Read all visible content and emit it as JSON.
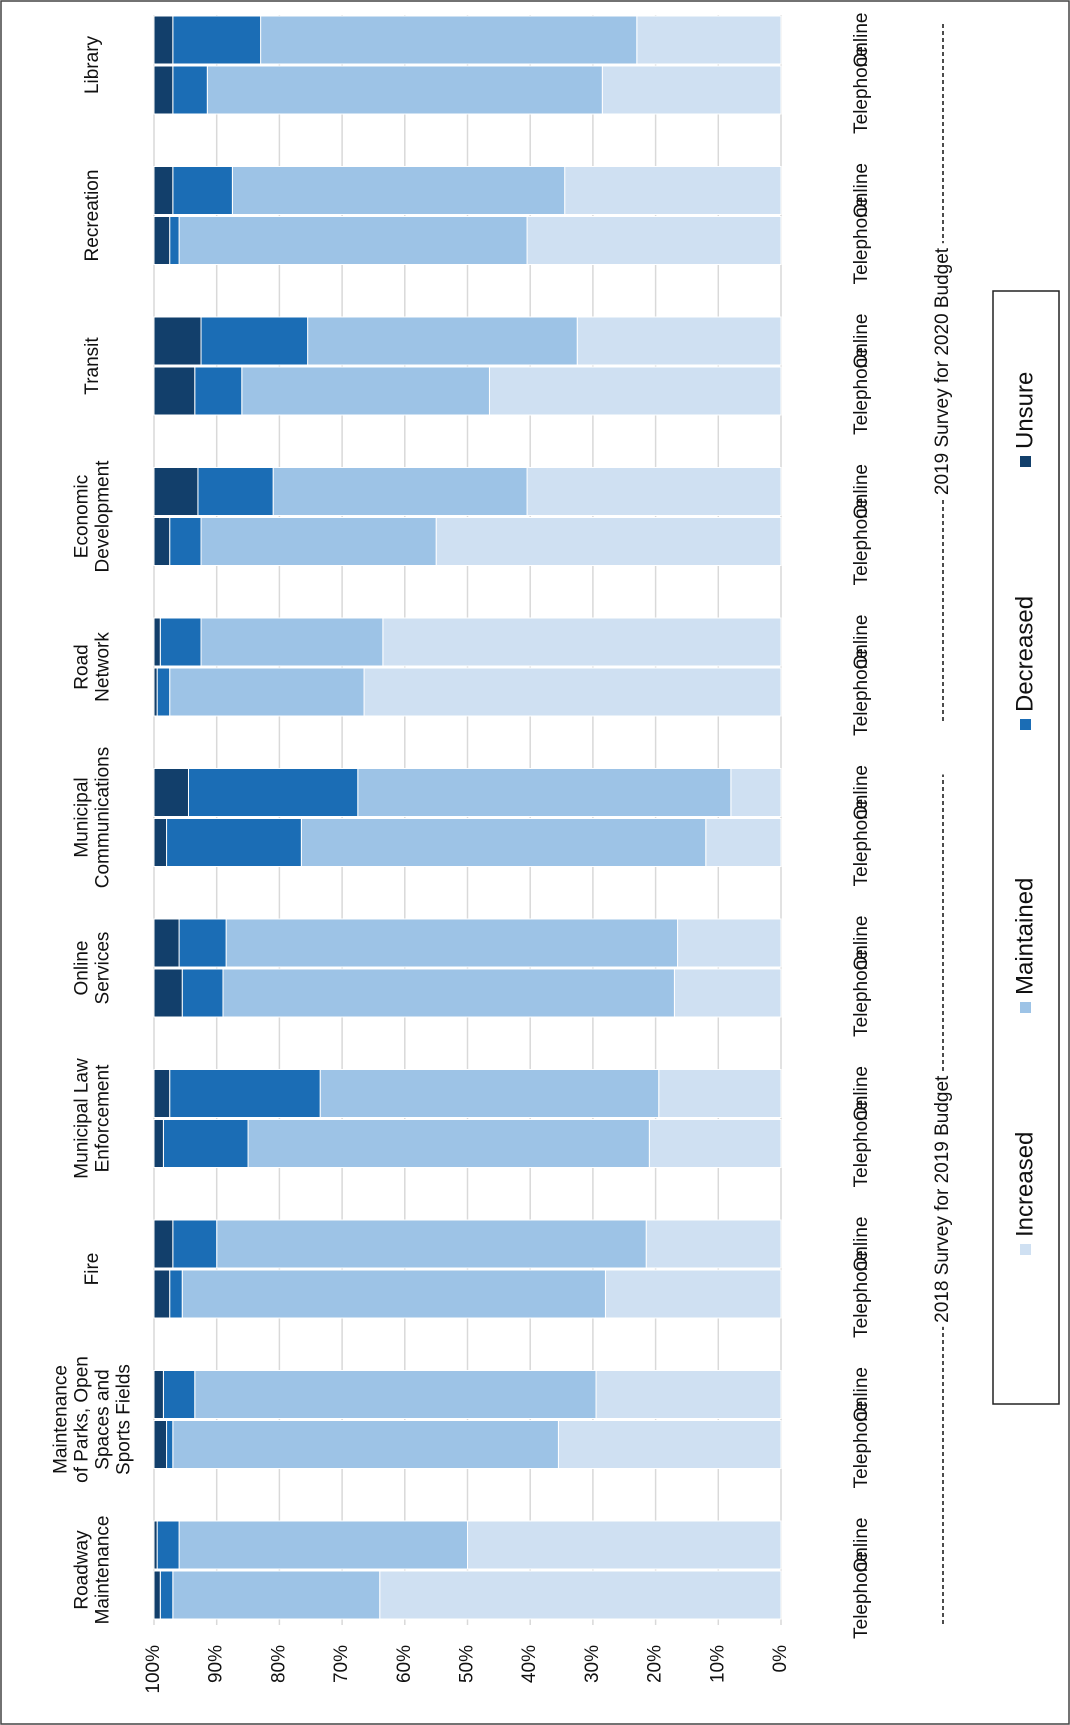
{
  "chart_data": {
    "type": "stacked-bar",
    "groups": [
      {
        "label": "2018 Survey for 2019 Budget",
        "categories": [
          [
            "Roadway",
            "Maintenance"
          ],
          [
            "Maintenance",
            "of Parks, Open",
            "Spaces and",
            "Sports Fields"
          ],
          [
            "Fire"
          ],
          [
            "Municipal Law",
            "Enforcement"
          ],
          [
            "Online",
            "Services"
          ],
          [
            "Municipal",
            "Communications"
          ]
        ]
      },
      {
        "label": "2019 Survey for 2020 Budget",
        "categories": [
          [
            "Road",
            "Network"
          ],
          [
            "Economic",
            "Development"
          ],
          [
            "Transit"
          ],
          [
            "Recreation"
          ],
          [
            "Library"
          ]
        ]
      }
    ],
    "bar_labels": [
      "Telephone",
      "Online"
    ],
    "series": [
      {
        "name": "Increased",
        "color": "#cfe0f2",
        "values": [
          [
            64,
            50
          ],
          [
            35.5,
            29.5
          ],
          [
            28,
            21.5
          ],
          [
            21,
            19.5
          ],
          [
            17,
            16.5
          ],
          [
            12,
            8
          ],
          [
            66.5,
            63.5
          ],
          [
            55,
            40.5
          ],
          [
            46.5,
            32.5
          ],
          [
            40.5,
            34.5
          ],
          [
            28.5,
            23
          ]
        ]
      },
      {
        "name": "Maintained",
        "color": "#9dc3e6",
        "values": [
          [
            33,
            46
          ],
          [
            61.5,
            64
          ],
          [
            67.5,
            68.5
          ],
          [
            64,
            54
          ],
          [
            72,
            72
          ],
          [
            64.5,
            59.5
          ],
          [
            31,
            29
          ],
          [
            37.5,
            40.5
          ],
          [
            39.5,
            43
          ],
          [
            55.5,
            53
          ],
          [
            63,
            60
          ]
        ]
      },
      {
        "name": "Decreased",
        "color": "#1b6db5",
        "values": [
          [
            2,
            3.5
          ],
          [
            1,
            5
          ],
          [
            2,
            7
          ],
          [
            13.5,
            24
          ],
          [
            6.5,
            7.5
          ],
          [
            21.5,
            27
          ],
          [
            2,
            6.5
          ],
          [
            5,
            12
          ],
          [
            7.5,
            17
          ],
          [
            1.5,
            9.5
          ],
          [
            5.5,
            14
          ]
        ]
      },
      {
        "name": "Unsure",
        "color": "#123f6b",
        "values": [
          [
            1,
            0.5
          ],
          [
            2,
            1.5
          ],
          [
            2.5,
            3
          ],
          [
            1.5,
            2.5
          ],
          [
            4.5,
            4
          ],
          [
            2,
            5.5
          ],
          [
            0.5,
            1
          ],
          [
            2.5,
            7
          ],
          [
            6.5,
            7.5
          ],
          [
            2.5,
            3
          ],
          [
            3,
            3
          ]
        ]
      }
    ],
    "ylim": [
      0,
      100
    ],
    "yticks": [
      {
        "value": 0,
        "label": "0%"
      },
      {
        "value": 10,
        "label": "10%"
      },
      {
        "value": 20,
        "label": "20%"
      },
      {
        "value": 30,
        "label": "30%"
      },
      {
        "value": 40,
        "label": "40%"
      },
      {
        "value": 50,
        "label": "50%"
      },
      {
        "value": 60,
        "label": "60%"
      },
      {
        "value": 70,
        "label": "70%"
      },
      {
        "value": 80,
        "label": "80%"
      },
      {
        "value": 90,
        "label": "90%"
      },
      {
        "value": 100,
        "label": "100%"
      }
    ],
    "grid": true,
    "legend": "bottom"
  }
}
